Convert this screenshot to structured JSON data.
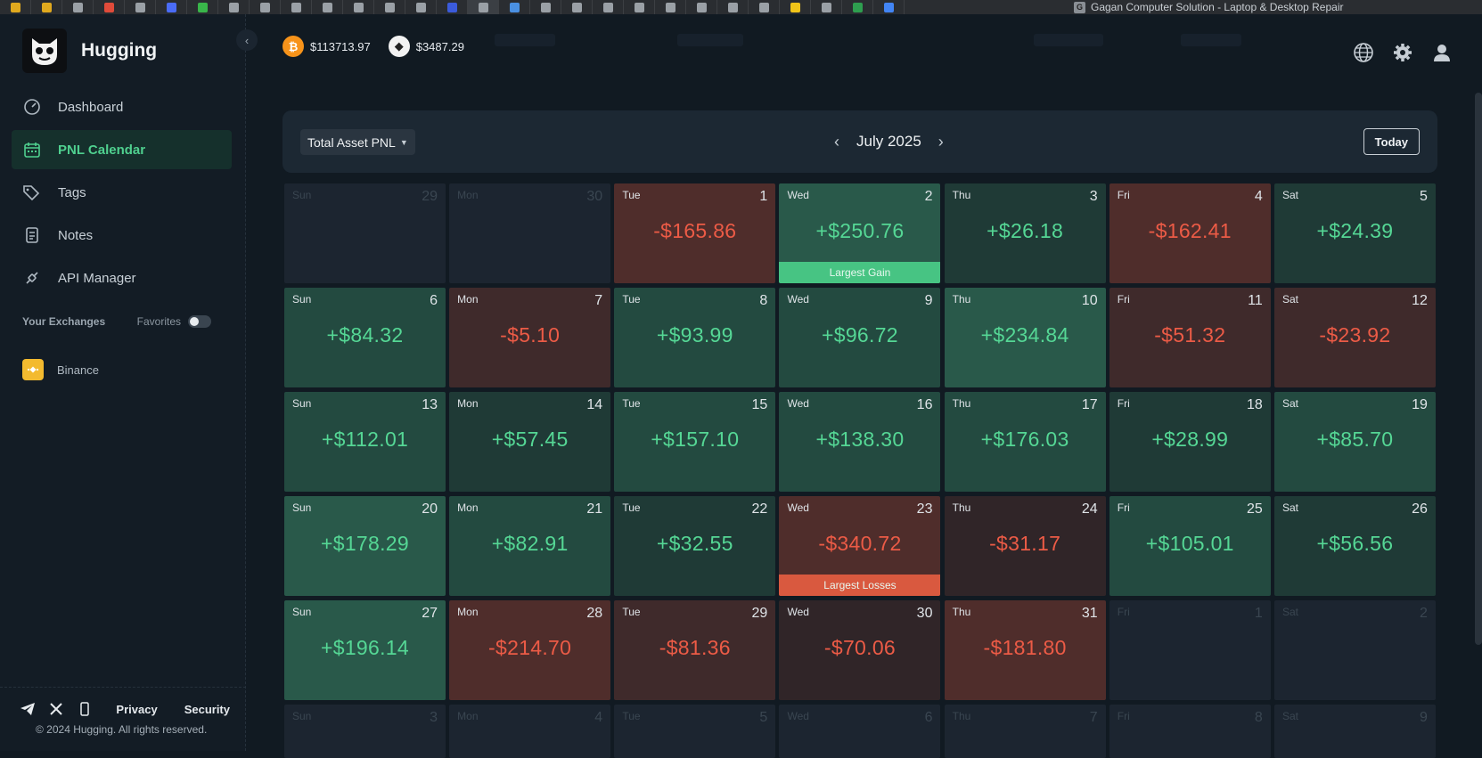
{
  "browser": {
    "active_tab_title": "Gagan Computer Solution - Laptop & Desktop Repair",
    "tab_colors": [
      "#e0a91e",
      "#e0a91e",
      "#9aa0a6",
      "#e04b3a",
      "#9aa0a6",
      "#4a6cf7",
      "#39b54a",
      "#9aa0a6",
      "#9aa0a6",
      "#9aa0a6",
      "#9aa0a6",
      "#9aa0a6",
      "#9aa0a6",
      "#9aa0a6",
      "#3b5bdb",
      "#9aa0a6",
      "#4a90e2",
      "#9aa0a6",
      "#9aa0a6",
      "#9aa0a6",
      "#9aa0a6",
      "#9aa0a6",
      "#9aa0a6",
      "#9aa0a6",
      "#9aa0a6",
      "#f0c419",
      "#9aa0a6",
      "#2e9e4f",
      "#4285f4"
    ]
  },
  "sidebar": {
    "brand": "Hugging",
    "nav": [
      {
        "label": "Dashboard",
        "icon": "dashboard-icon",
        "active": false
      },
      {
        "label": "PNL Calendar",
        "icon": "calendar-icon",
        "active": true
      },
      {
        "label": "Tags",
        "icon": "tags-icon",
        "active": false
      },
      {
        "label": "Notes",
        "icon": "notes-icon",
        "active": false
      },
      {
        "label": "API Manager",
        "icon": "api-icon",
        "active": false
      }
    ],
    "exchanges_title": "Your Exchanges",
    "favorites_label": "Favorites",
    "exchange": "Binance",
    "footer": {
      "privacy": "Privacy",
      "security": "Security",
      "copyright": "© 2024 Hugging. All rights reserved."
    }
  },
  "ticker": {
    "btc": "$113713.97",
    "eth": "$3487.29"
  },
  "calendar": {
    "mode": "Total Asset PNL",
    "month": "July 2025",
    "today": "Today",
    "gain_label": "Largest Gain",
    "loss_label": "Largest Losses",
    "days": [
      {
        "dow": "Sun",
        "day": "29",
        "pnl": "",
        "in": false
      },
      {
        "dow": "Mon",
        "day": "30",
        "pnl": "",
        "in": false
      },
      {
        "dow": "Tue",
        "day": "1",
        "pnl": "-$165.86",
        "in": true,
        "tone": "r3"
      },
      {
        "dow": "Wed",
        "day": "2",
        "pnl": "+$250.76",
        "in": true,
        "tone": "g3",
        "banner": "gain"
      },
      {
        "dow": "Thu",
        "day": "3",
        "pnl": "+$26.18",
        "in": true,
        "tone": "g1"
      },
      {
        "dow": "Fri",
        "day": "4",
        "pnl": "-$162.41",
        "in": true,
        "tone": "r3"
      },
      {
        "dow": "Sat",
        "day": "5",
        "pnl": "+$24.39",
        "in": true,
        "tone": "g1"
      },
      {
        "dow": "Sun",
        "day": "6",
        "pnl": "+$84.32",
        "in": true,
        "tone": "g2"
      },
      {
        "dow": "Mon",
        "day": "7",
        "pnl": "-$5.10",
        "in": true,
        "tone": "r2"
      },
      {
        "dow": "Tue",
        "day": "8",
        "pnl": "+$93.99",
        "in": true,
        "tone": "g2"
      },
      {
        "dow": "Wed",
        "day": "9",
        "pnl": "+$96.72",
        "in": true,
        "tone": "g2"
      },
      {
        "dow": "Thu",
        "day": "10",
        "pnl": "+$234.84",
        "in": true,
        "tone": "g3"
      },
      {
        "dow": "Fri",
        "day": "11",
        "pnl": "-$51.32",
        "in": true,
        "tone": "r2"
      },
      {
        "dow": "Sat",
        "day": "12",
        "pnl": "-$23.92",
        "in": true,
        "tone": "r2"
      },
      {
        "dow": "Sun",
        "day": "13",
        "pnl": "+$112.01",
        "in": true,
        "tone": "g2"
      },
      {
        "dow": "Mon",
        "day": "14",
        "pnl": "+$57.45",
        "in": true,
        "tone": "g1"
      },
      {
        "dow": "Tue",
        "day": "15",
        "pnl": "+$157.10",
        "in": true,
        "tone": "g2"
      },
      {
        "dow": "Wed",
        "day": "16",
        "pnl": "+$138.30",
        "in": true,
        "tone": "g2"
      },
      {
        "dow": "Thu",
        "day": "17",
        "pnl": "+$176.03",
        "in": true,
        "tone": "g2"
      },
      {
        "dow": "Fri",
        "day": "18",
        "pnl": "+$28.99",
        "in": true,
        "tone": "g1"
      },
      {
        "dow": "Sat",
        "day": "19",
        "pnl": "+$85.70",
        "in": true,
        "tone": "g2"
      },
      {
        "dow": "Sun",
        "day": "20",
        "pnl": "+$178.29",
        "in": true,
        "tone": "g3"
      },
      {
        "dow": "Mon",
        "day": "21",
        "pnl": "+$82.91",
        "in": true,
        "tone": "g2"
      },
      {
        "dow": "Tue",
        "day": "22",
        "pnl": "+$32.55",
        "in": true,
        "tone": "g1"
      },
      {
        "dow": "Wed",
        "day": "23",
        "pnl": "-$340.72",
        "in": true,
        "tone": "r3",
        "banner": "loss"
      },
      {
        "dow": "Thu",
        "day": "24",
        "pnl": "-$31.17",
        "in": true,
        "tone": "r1"
      },
      {
        "dow": "Fri",
        "day": "25",
        "pnl": "+$105.01",
        "in": true,
        "tone": "g2"
      },
      {
        "dow": "Sat",
        "day": "26",
        "pnl": "+$56.56",
        "in": true,
        "tone": "g1"
      },
      {
        "dow": "Sun",
        "day": "27",
        "pnl": "+$196.14",
        "in": true,
        "tone": "g3"
      },
      {
        "dow": "Mon",
        "day": "28",
        "pnl": "-$214.70",
        "in": true,
        "tone": "r3"
      },
      {
        "dow": "Tue",
        "day": "29",
        "pnl": "-$81.36",
        "in": true,
        "tone": "r2"
      },
      {
        "dow": "Wed",
        "day": "30",
        "pnl": "-$70.06",
        "in": true,
        "tone": "r1"
      },
      {
        "dow": "Thu",
        "day": "31",
        "pnl": "-$181.80",
        "in": true,
        "tone": "r3"
      },
      {
        "dow": "Fri",
        "day": "1",
        "pnl": "",
        "in": false
      },
      {
        "dow": "Sat",
        "day": "2",
        "pnl": "",
        "in": false
      },
      {
        "dow": "Sun",
        "day": "3",
        "pnl": "",
        "in": false
      },
      {
        "dow": "Mon",
        "day": "4",
        "pnl": "",
        "in": false
      },
      {
        "dow": "Tue",
        "day": "5",
        "pnl": "",
        "in": false
      },
      {
        "dow": "Wed",
        "day": "6",
        "pnl": "",
        "in": false
      },
      {
        "dow": "Thu",
        "day": "7",
        "pnl": "",
        "in": false
      },
      {
        "dow": "Fri",
        "day": "8",
        "pnl": "",
        "in": false
      },
      {
        "dow": "Sat",
        "day": "9",
        "pnl": "",
        "in": false
      }
    ]
  }
}
